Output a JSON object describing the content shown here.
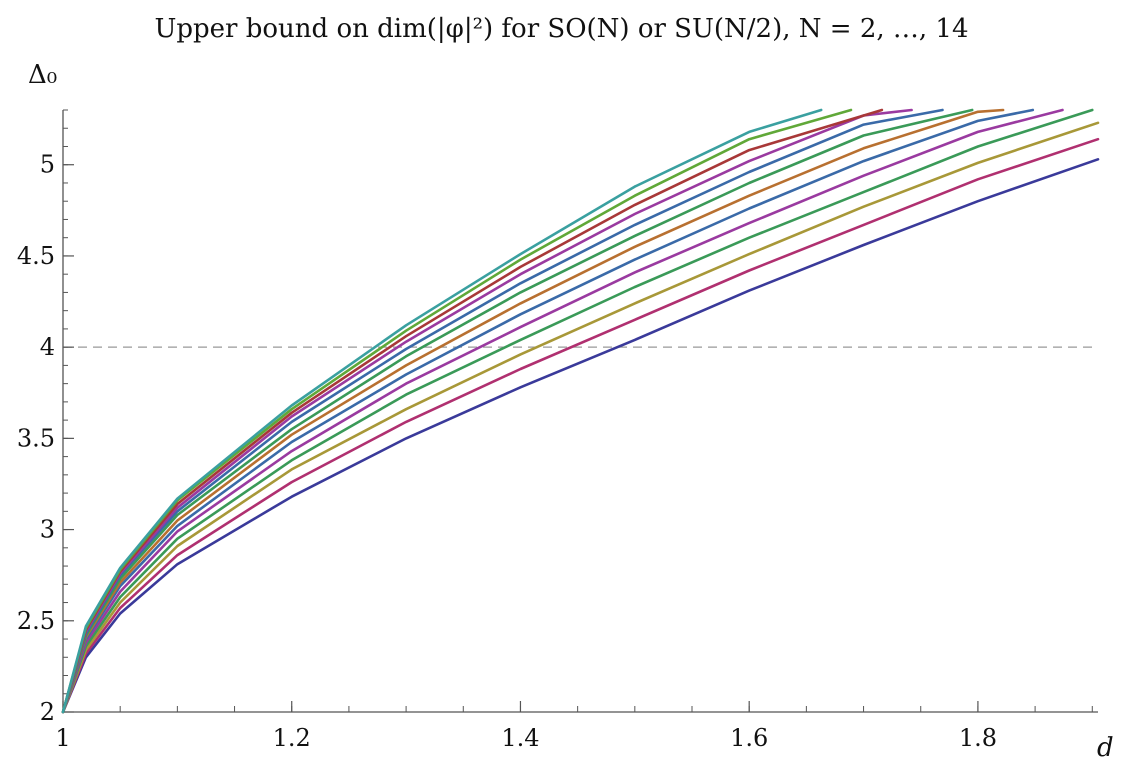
{
  "chart_data": {
    "type": "line",
    "title": "Upper bound on dim(|φ|²) for SO(N) or SU(N/2), N = 2, …, 14",
    "xlabel": "d",
    "ylabel": "Δ₀",
    "xlim": [
      1,
      1.905
    ],
    "ylim": [
      2,
      5.3
    ],
    "x_ticks": [
      "1",
      "1.2",
      "1.4",
      "1.6",
      "1.8"
    ],
    "y_ticks": [
      "2",
      "2.5",
      "3",
      "3.5",
      "4",
      "4.5",
      "5"
    ],
    "reference_line": {
      "y": 4,
      "style": "dashed"
    },
    "series": [
      {
        "color": "#3a3a9a",
        "points": [
          [
            1,
            2
          ],
          [
            1.02,
            2.3
          ],
          [
            1.05,
            2.54
          ],
          [
            1.1,
            2.81
          ],
          [
            1.2,
            3.18
          ],
          [
            1.3,
            3.5
          ],
          [
            1.4,
            3.78
          ],
          [
            1.5,
            4.04
          ],
          [
            1.6,
            4.31
          ],
          [
            1.7,
            4.56
          ],
          [
            1.8,
            4.8
          ],
          [
            1.905,
            5.03
          ]
        ]
      },
      {
        "color": "#b03070",
        "points": [
          [
            1,
            2
          ],
          [
            1.02,
            2.32
          ],
          [
            1.05,
            2.57
          ],
          [
            1.1,
            2.86
          ],
          [
            1.2,
            3.26
          ],
          [
            1.3,
            3.59
          ],
          [
            1.4,
            3.88
          ],
          [
            1.5,
            4.15
          ],
          [
            1.6,
            4.42
          ],
          [
            1.7,
            4.67
          ],
          [
            1.8,
            4.92
          ],
          [
            1.905,
            5.14
          ]
        ]
      },
      {
        "color": "#a89838",
        "points": [
          [
            1,
            2
          ],
          [
            1.02,
            2.34
          ],
          [
            1.05,
            2.6
          ],
          [
            1.1,
            2.91
          ],
          [
            1.2,
            3.33
          ],
          [
            1.3,
            3.66
          ],
          [
            1.4,
            3.96
          ],
          [
            1.5,
            4.24
          ],
          [
            1.6,
            4.51
          ],
          [
            1.7,
            4.77
          ],
          [
            1.8,
            5.01
          ],
          [
            1.905,
            5.23
          ]
        ]
      },
      {
        "color": "#3a9a58",
        "points": [
          [
            1,
            2
          ],
          [
            1.02,
            2.36
          ],
          [
            1.05,
            2.63
          ],
          [
            1.1,
            2.95
          ],
          [
            1.2,
            3.38
          ],
          [
            1.3,
            3.74
          ],
          [
            1.4,
            4.04
          ],
          [
            1.5,
            4.33
          ],
          [
            1.6,
            4.6
          ],
          [
            1.7,
            4.85
          ],
          [
            1.8,
            5.1
          ],
          [
            1.9,
            5.3
          ]
        ]
      },
      {
        "color": "#9a3aa0",
        "points": [
          [
            1,
            2
          ],
          [
            1.02,
            2.38
          ],
          [
            1.05,
            2.66
          ],
          [
            1.1,
            2.99
          ],
          [
            1.2,
            3.43
          ],
          [
            1.3,
            3.8
          ],
          [
            1.4,
            4.11
          ],
          [
            1.5,
            4.41
          ],
          [
            1.6,
            4.68
          ],
          [
            1.7,
            4.94
          ],
          [
            1.8,
            5.18
          ],
          [
            1.874,
            5.3
          ]
        ]
      },
      {
        "color": "#3a6aa8",
        "points": [
          [
            1,
            2
          ],
          [
            1.02,
            2.4
          ],
          [
            1.05,
            2.69
          ],
          [
            1.1,
            3.02
          ],
          [
            1.2,
            3.48
          ],
          [
            1.3,
            3.85
          ],
          [
            1.4,
            4.18
          ],
          [
            1.5,
            4.48
          ],
          [
            1.6,
            4.76
          ],
          [
            1.7,
            5.02
          ],
          [
            1.8,
            5.24
          ],
          [
            1.848,
            5.3
          ]
        ]
      },
      {
        "color": "#b87030",
        "points": [
          [
            1,
            2
          ],
          [
            1.02,
            2.41
          ],
          [
            1.05,
            2.71
          ],
          [
            1.1,
            3.05
          ],
          [
            1.2,
            3.52
          ],
          [
            1.3,
            3.9
          ],
          [
            1.4,
            4.24
          ],
          [
            1.5,
            4.55
          ],
          [
            1.6,
            4.83
          ],
          [
            1.7,
            5.09
          ],
          [
            1.8,
            5.29
          ],
          [
            1.822,
            5.3
          ]
        ]
      },
      {
        "color": "#3a9a58",
        "points": [
          [
            1,
            2
          ],
          [
            1.02,
            2.42
          ],
          [
            1.05,
            2.73
          ],
          [
            1.1,
            3.08
          ],
          [
            1.2,
            3.55
          ],
          [
            1.3,
            3.95
          ],
          [
            1.4,
            4.3
          ],
          [
            1.5,
            4.61
          ],
          [
            1.6,
            4.9
          ],
          [
            1.7,
            5.16
          ],
          [
            1.795,
            5.3
          ]
        ]
      },
      {
        "color": "#3a6aa8",
        "points": [
          [
            1,
            2
          ],
          [
            1.02,
            2.43
          ],
          [
            1.05,
            2.75
          ],
          [
            1.1,
            3.1
          ],
          [
            1.2,
            3.59
          ],
          [
            1.3,
            3.99
          ],
          [
            1.4,
            4.35
          ],
          [
            1.5,
            4.67
          ],
          [
            1.6,
            4.96
          ],
          [
            1.7,
            5.22
          ],
          [
            1.769,
            5.3
          ]
        ]
      },
      {
        "color": "#9a3aa0",
        "points": [
          [
            1,
            2
          ],
          [
            1.02,
            2.44
          ],
          [
            1.05,
            2.76
          ],
          [
            1.1,
            3.12
          ],
          [
            1.2,
            3.62
          ],
          [
            1.3,
            4.03
          ],
          [
            1.4,
            4.4
          ],
          [
            1.5,
            4.73
          ],
          [
            1.6,
            5.02
          ],
          [
            1.7,
            5.27
          ],
          [
            1.742,
            5.3
          ]
        ]
      },
      {
        "color": "#a83838",
        "points": [
          [
            1,
            2
          ],
          [
            1.02,
            2.45
          ],
          [
            1.05,
            2.77
          ],
          [
            1.1,
            3.14
          ],
          [
            1.2,
            3.64
          ],
          [
            1.3,
            4.06
          ],
          [
            1.4,
            4.44
          ],
          [
            1.5,
            4.78
          ],
          [
            1.6,
            5.08
          ],
          [
            1.716,
            5.3
          ]
        ]
      },
      {
        "color": "#60a838",
        "points": [
          [
            1,
            2
          ],
          [
            1.02,
            2.46
          ],
          [
            1.05,
            2.78
          ],
          [
            1.1,
            3.16
          ],
          [
            1.2,
            3.66
          ],
          [
            1.3,
            4.09
          ],
          [
            1.4,
            4.48
          ],
          [
            1.5,
            4.83
          ],
          [
            1.6,
            5.14
          ],
          [
            1.689,
            5.3
          ]
        ]
      },
      {
        "color": "#3aa0a0",
        "points": [
          [
            1,
            2
          ],
          [
            1.02,
            2.47
          ],
          [
            1.05,
            2.79
          ],
          [
            1.1,
            3.17
          ],
          [
            1.2,
            3.68
          ],
          [
            1.3,
            4.12
          ],
          [
            1.4,
            4.51
          ],
          [
            1.5,
            4.88
          ],
          [
            1.6,
            5.18
          ],
          [
            1.663,
            5.3
          ]
        ]
      }
    ]
  }
}
